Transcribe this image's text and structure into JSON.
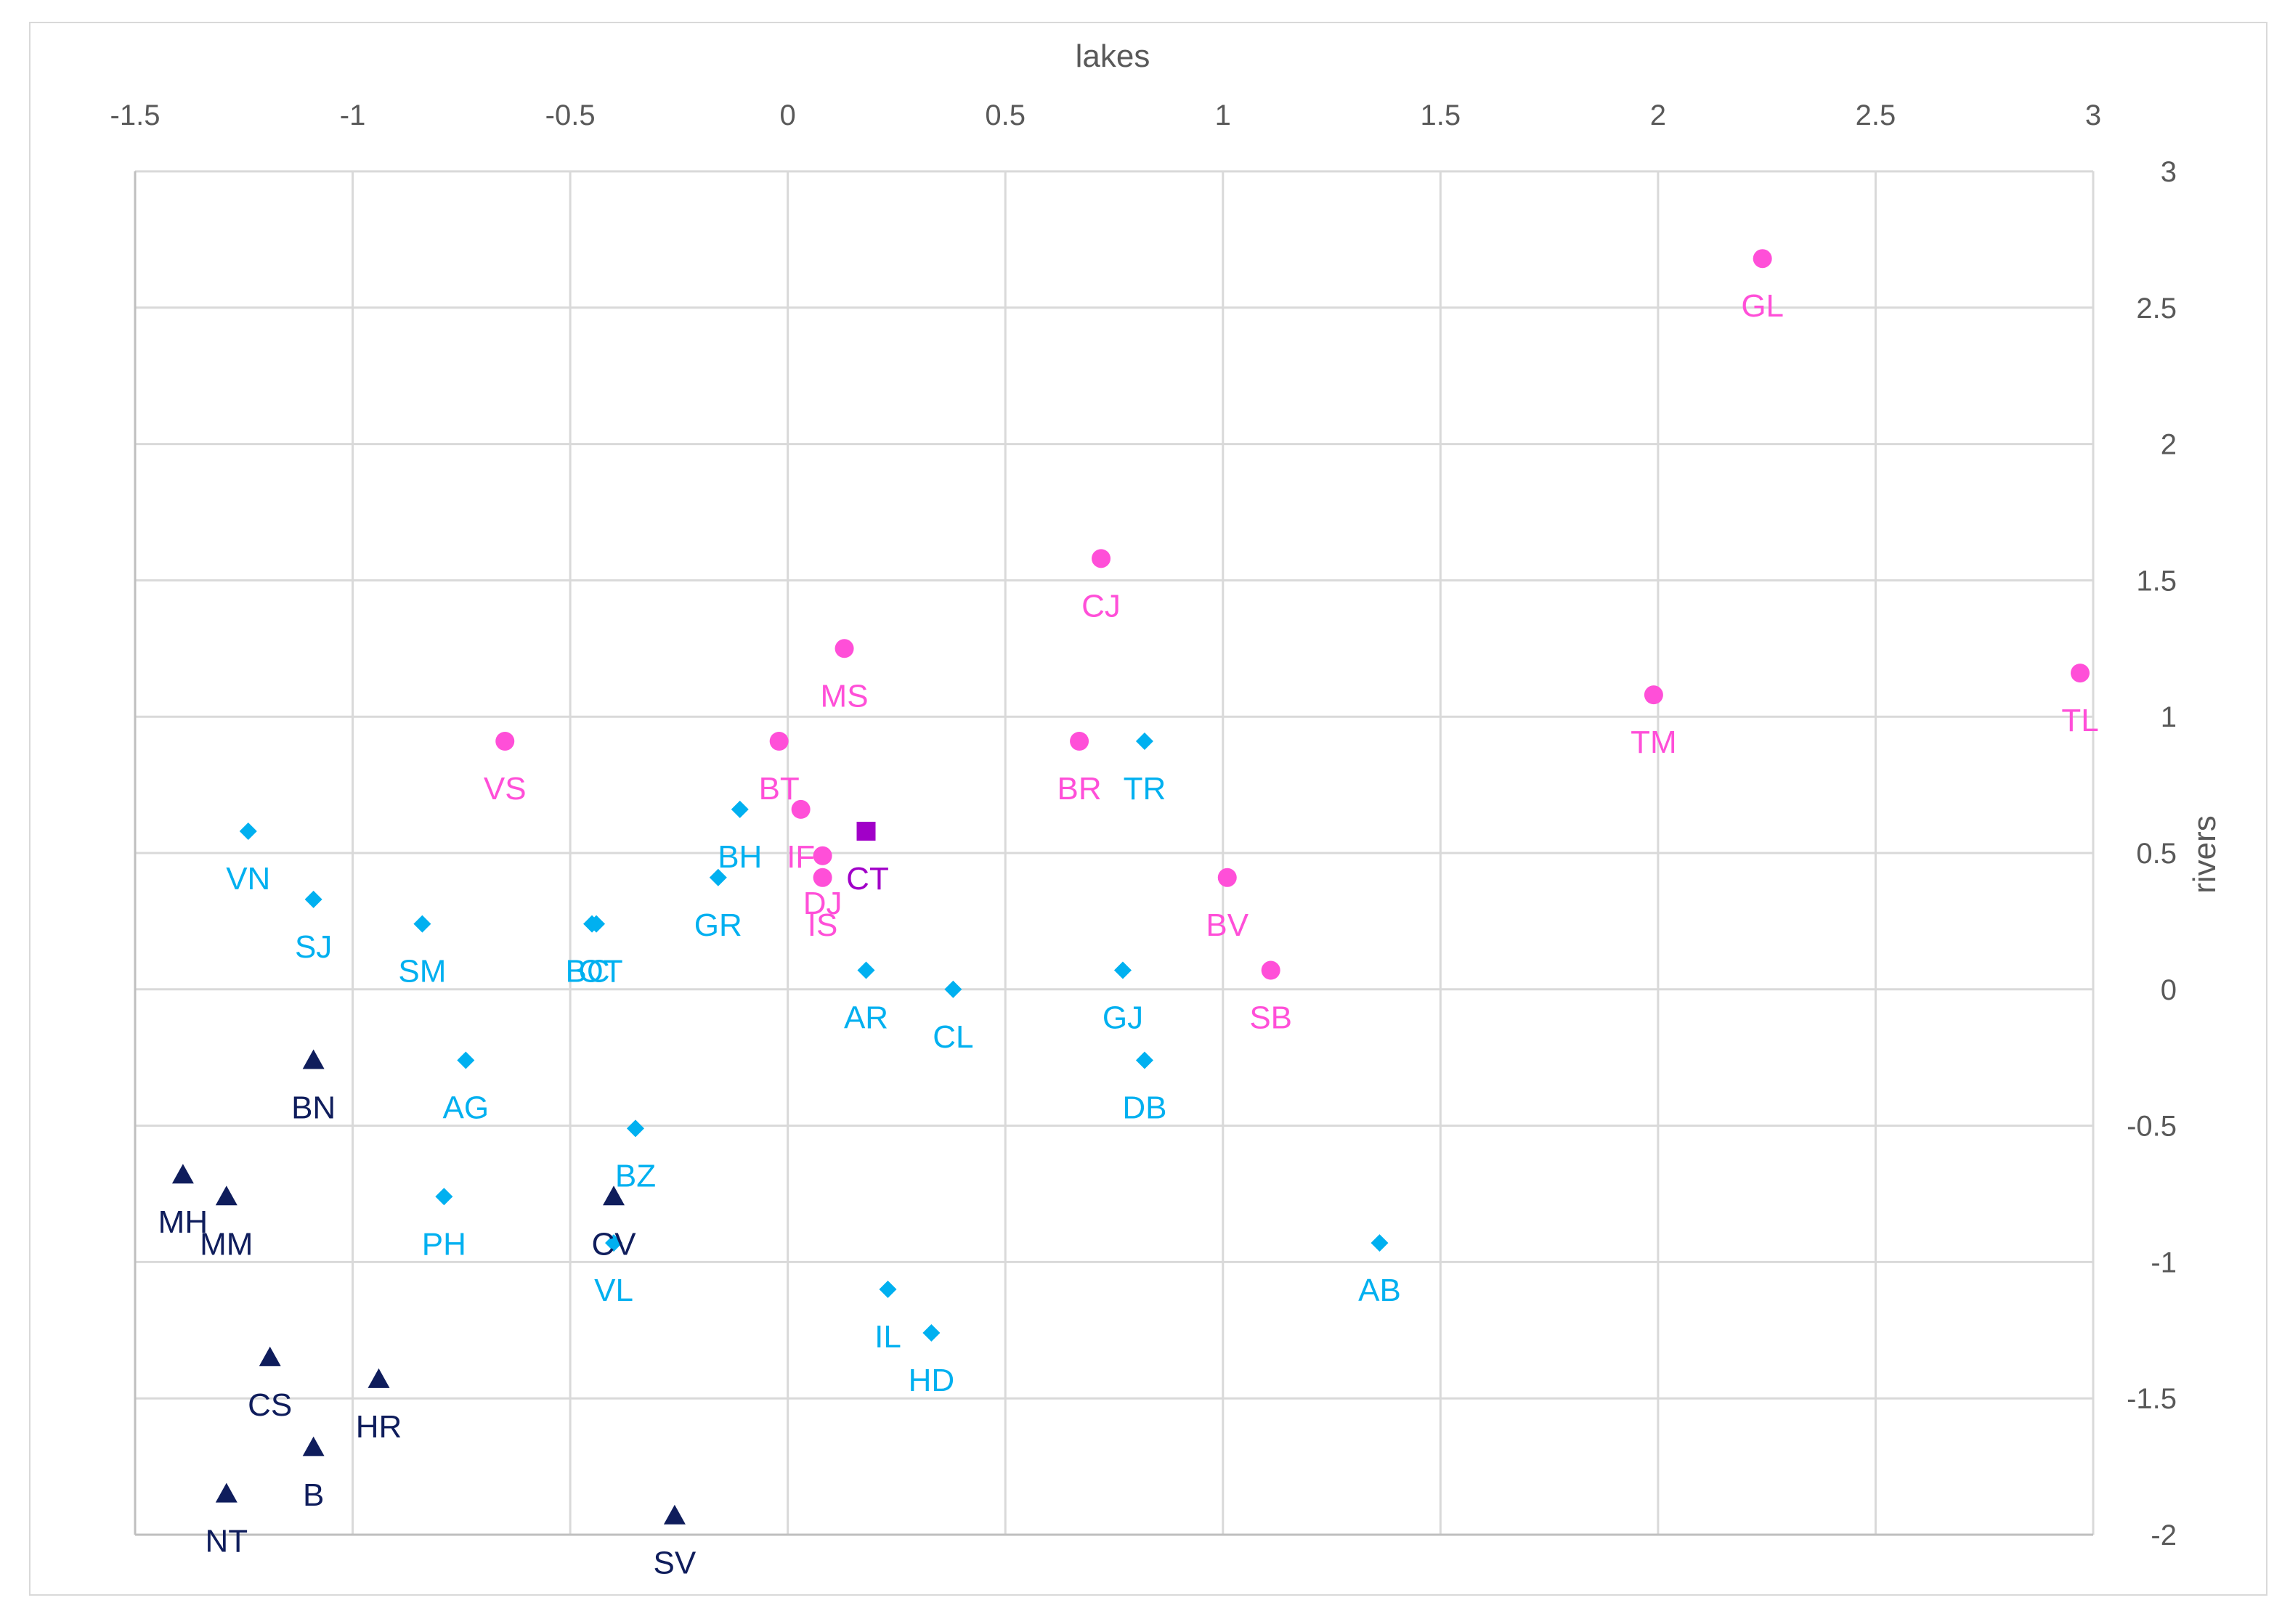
{
  "chart_data": {
    "type": "scatter",
    "title": "",
    "xlabel": "lakes",
    "ylabel": "rivers",
    "xlim": [
      -1.5,
      3
    ],
    "ylim": [
      -2,
      3
    ],
    "x_ticks": [
      "-1.5",
      "-1",
      "-0.5",
      "0",
      "0.5",
      "1",
      "1.5",
      "2",
      "2.5",
      "3"
    ],
    "y_ticks": [
      "3",
      "2.5",
      "2",
      "1.5",
      "1",
      "0.5",
      "0",
      "-0.5",
      "-1",
      "-1.5",
      "-2"
    ],
    "grid": true,
    "legend": "none",
    "series": [
      {
        "name": "pink-circles",
        "marker": "circle",
        "color": "#ff4fd8",
        "points": [
          {
            "label": "GL",
            "x": 2.24,
            "y": 2.68
          },
          {
            "label": "CJ",
            "x": 0.72,
            "y": 1.58
          },
          {
            "label": "MS",
            "x": 0.13,
            "y": 1.25
          },
          {
            "label": "VS",
            "x": -0.65,
            "y": 0.91
          },
          {
            "label": "BT",
            "x": -0.02,
            "y": 0.91
          },
          {
            "label": "BR",
            "x": 0.67,
            "y": 0.91
          },
          {
            "label": "TM",
            "x": 1.99,
            "y": 1.08
          },
          {
            "label": "TL",
            "x": 2.97,
            "y": 1.16
          },
          {
            "label": "IF",
            "x": 0.03,
            "y": 0.66
          },
          {
            "label": "DJ",
            "x": 0.08,
            "y": 0.49
          },
          {
            "label": "IS",
            "x": 0.08,
            "y": 0.41
          },
          {
            "label": "BV",
            "x": 1.01,
            "y": 0.41
          },
          {
            "label": "SB",
            "x": 1.11,
            "y": 0.07
          }
        ]
      },
      {
        "name": "purple-square",
        "marker": "square",
        "color": "#a100c8",
        "points": [
          {
            "label": "CT",
            "x": 0.18,
            "y": 0.58
          }
        ]
      },
      {
        "name": "blue-diamonds",
        "marker": "diamond",
        "color": "#00b0f0",
        "points": [
          {
            "label": "TR",
            "x": 0.82,
            "y": 0.91
          },
          {
            "label": "BH",
            "x": -0.11,
            "y": 0.66
          },
          {
            "label": "GR",
            "x": -0.16,
            "y": 0.41
          },
          {
            "label": "VN",
            "x": -1.24,
            "y": 0.58
          },
          {
            "label": "SJ",
            "x": -1.09,
            "y": 0.33
          },
          {
            "label": "SM",
            "x": -0.84,
            "y": 0.24
          },
          {
            "label": "BC",
            "x": -0.45,
            "y": 0.24
          },
          {
            "label": "OT",
            "x": -0.44,
            "y": 0.24
          },
          {
            "label": "AR",
            "x": 0.18,
            "y": 0.07
          },
          {
            "label": "CL",
            "x": 0.38,
            "y": 0.0
          },
          {
            "label": "GJ",
            "x": 0.77,
            "y": 0.07
          },
          {
            "label": "DB",
            "x": 0.82,
            "y": -0.26
          },
          {
            "label": "AG",
            "x": -0.74,
            "y": -0.26
          },
          {
            "label": "BZ",
            "x": -0.35,
            "y": -0.51
          },
          {
            "label": "PH",
            "x": -0.79,
            "y": -0.76
          },
          {
            "label": "VL",
            "x": -0.4,
            "y": -0.93
          },
          {
            "label": "AB",
            "x": 1.36,
            "y": -0.93
          },
          {
            "label": "IL",
            "x": 0.23,
            "y": -1.1
          },
          {
            "label": "HD",
            "x": 0.33,
            "y": -1.26
          }
        ]
      },
      {
        "name": "navy-triangles",
        "marker": "triangle",
        "color": "#0f1d5c",
        "points": [
          {
            "label": "BN",
            "x": -1.09,
            "y": -0.26
          },
          {
            "label": "MH",
            "x": -1.39,
            "y": -0.68
          },
          {
            "label": "MM",
            "x": -1.29,
            "y": -0.76
          },
          {
            "label": "CV",
            "x": -0.4,
            "y": -0.76
          },
          {
            "label": "CS",
            "x": -1.19,
            "y": -1.35
          },
          {
            "label": "HR",
            "x": -0.94,
            "y": -1.43
          },
          {
            "label": "B",
            "x": -1.09,
            "y": -1.68
          },
          {
            "label": "NT",
            "x": -1.29,
            "y": -1.85
          },
          {
            "label": "SV",
            "x": -0.26,
            "y": -1.93
          }
        ]
      }
    ]
  }
}
